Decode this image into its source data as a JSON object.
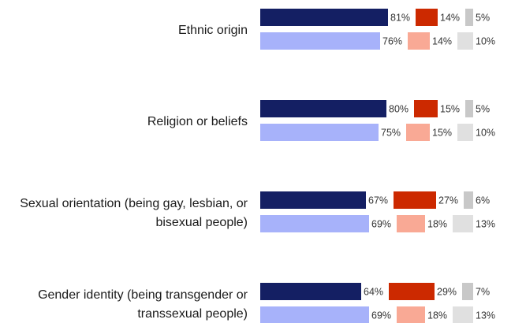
{
  "chart_data": {
    "type": "bar",
    "orientation": "horizontal",
    "stacked": true,
    "grid": false,
    "legend": "none",
    "categories": [
      [
        "Ethnic origin"
      ],
      [
        "Religion or beliefs"
      ],
      [
        "Sexual orientation (being gay, lesbian, or",
        "bisexual people)"
      ],
      [
        "Gender identity (being transgender or",
        "transsexual people)"
      ]
    ],
    "rows": [
      {
        "segments": [
          {
            "value": 81,
            "label": "81%",
            "color": "#141f63"
          },
          {
            "value": 14,
            "label": "14%",
            "color": "#cc2900"
          },
          {
            "value": 5,
            "label": "5%",
            "color": "#c8c8c8"
          }
        ],
        "lower": [
          {
            "value": 76,
            "label": "76%",
            "color": "#a7b2fa"
          },
          {
            "value": 14,
            "label": "14%",
            "color": "#f9a995"
          },
          {
            "value": 10,
            "label": "10%",
            "color": "#e0e0e0"
          }
        ]
      },
      {
        "segments": [
          {
            "value": 80,
            "label": "80%",
            "color": "#141f63"
          },
          {
            "value": 15,
            "label": "15%",
            "color": "#cc2900"
          },
          {
            "value": 5,
            "label": "5%",
            "color": "#c8c8c8"
          }
        ],
        "lower": [
          {
            "value": 75,
            "label": "75%",
            "color": "#a7b2fa"
          },
          {
            "value": 15,
            "label": "15%",
            "color": "#f9a995"
          },
          {
            "value": 10,
            "label": "10%",
            "color": "#e0e0e0"
          }
        ]
      },
      {
        "segments": [
          {
            "value": 67,
            "label": "67%",
            "color": "#141f63"
          },
          {
            "value": 27,
            "label": "27%",
            "color": "#cc2900"
          },
          {
            "value": 6,
            "label": "6%",
            "color": "#c8c8c8"
          }
        ],
        "lower": [
          {
            "value": 69,
            "label": "69%",
            "color": "#a7b2fa"
          },
          {
            "value": 18,
            "label": "18%",
            "color": "#f9a995"
          },
          {
            "value": 13,
            "label": "13%",
            "color": "#e0e0e0"
          }
        ]
      },
      {
        "segments": [
          {
            "value": 64,
            "label": "64%",
            "color": "#141f63"
          },
          {
            "value": 29,
            "label": "29%",
            "color": "#cc2900"
          },
          {
            "value": 7,
            "label": "7%",
            "color": "#c8c8c8"
          }
        ],
        "lower": [
          {
            "value": 69,
            "label": "69%",
            "color": "#a7b2fa"
          },
          {
            "value": 18,
            "label": "18%",
            "color": "#f9a995"
          },
          {
            "value": 13,
            "label": "13%",
            "color": "#e0e0e0"
          }
        ]
      }
    ]
  }
}
